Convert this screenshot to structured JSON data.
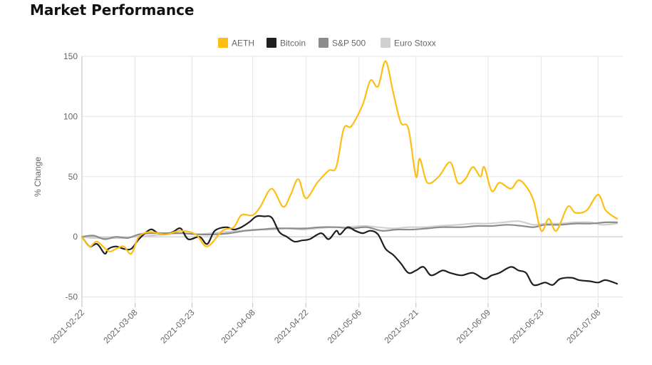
{
  "title": "Market Performance",
  "chart_data": {
    "type": "line",
    "title": "Market Performance",
    "xlabel": "",
    "ylabel": "% Change",
    "ylim": [
      -55,
      150
    ],
    "yticks": [
      -50,
      0,
      50,
      100,
      150
    ],
    "x_ticks": [
      "2021-02-22",
      "2021-03-08",
      "2021-03-23",
      "2021-04-08",
      "2021-04-22",
      "2021-05-06",
      "2021-05-21",
      "2021-06-09",
      "2021-06-23",
      "2021-07-08"
    ],
    "grid": true,
    "legend_position": "top",
    "series": [
      {
        "name": "AETH",
        "color": "#FDBF13",
        "points": [
          [
            "2021-02-22",
            0
          ],
          [
            "2021-02-24",
            -8
          ],
          [
            "2021-02-26",
            -4
          ],
          [
            "2021-03-01",
            -12
          ],
          [
            "2021-03-03",
            -10
          ],
          [
            "2021-03-05",
            -8
          ],
          [
            "2021-03-07",
            -14
          ],
          [
            "2021-03-09",
            0
          ],
          [
            "2021-03-12",
            4
          ],
          [
            "2021-03-16",
            2
          ],
          [
            "2021-03-20",
            5
          ],
          [
            "2021-03-24",
            2
          ],
          [
            "2021-03-27",
            -8
          ],
          [
            "2021-03-31",
            5
          ],
          [
            "2021-04-03",
            8
          ],
          [
            "2021-04-05",
            18
          ],
          [
            "2021-04-08",
            18
          ],
          [
            "2021-04-10",
            25
          ],
          [
            "2021-04-13",
            40
          ],
          [
            "2021-04-16",
            25
          ],
          [
            "2021-04-18",
            35
          ],
          [
            "2021-04-20",
            48
          ],
          [
            "2021-04-22",
            32
          ],
          [
            "2021-04-25",
            45
          ],
          [
            "2021-04-28",
            55
          ],
          [
            "2021-04-30",
            58
          ],
          [
            "2021-05-02",
            90
          ],
          [
            "2021-05-04",
            92
          ],
          [
            "2021-05-07",
            110
          ],
          [
            "2021-05-09",
            130
          ],
          [
            "2021-05-11",
            125
          ],
          [
            "2021-05-13",
            146
          ],
          [
            "2021-05-15",
            120
          ],
          [
            "2021-05-17",
            95
          ],
          [
            "2021-05-19",
            90
          ],
          [
            "2021-05-21",
            50
          ],
          [
            "2021-05-22",
            65
          ],
          [
            "2021-05-24",
            45
          ],
          [
            "2021-05-27",
            50
          ],
          [
            "2021-05-30",
            62
          ],
          [
            "2021-06-01",
            45
          ],
          [
            "2021-06-03",
            48
          ],
          [
            "2021-06-05",
            58
          ],
          [
            "2021-06-07",
            50
          ],
          [
            "2021-06-08",
            58
          ],
          [
            "2021-06-10",
            38
          ],
          [
            "2021-06-12",
            45
          ],
          [
            "2021-06-15",
            40
          ],
          [
            "2021-06-17",
            47
          ],
          [
            "2021-06-19",
            42
          ],
          [
            "2021-06-21",
            30
          ],
          [
            "2021-06-23",
            5
          ],
          [
            "2021-06-25",
            15
          ],
          [
            "2021-06-27",
            5
          ],
          [
            "2021-06-30",
            25
          ],
          [
            "2021-07-02",
            20
          ],
          [
            "2021-07-05",
            22
          ],
          [
            "2021-07-08",
            35
          ],
          [
            "2021-07-10",
            22
          ],
          [
            "2021-07-13",
            15
          ]
        ]
      },
      {
        "name": "Bitcoin",
        "color": "#1F1F1F",
        "points": [
          [
            "2021-02-22",
            0
          ],
          [
            "2021-02-24",
            -8
          ],
          [
            "2021-02-26",
            -6
          ],
          [
            "2021-02-28",
            -14
          ],
          [
            "2021-03-01",
            -10
          ],
          [
            "2021-03-03",
            -8
          ],
          [
            "2021-03-05",
            -10
          ],
          [
            "2021-03-07",
            -10
          ],
          [
            "2021-03-09",
            -2
          ],
          [
            "2021-03-12",
            6
          ],
          [
            "2021-03-14",
            3
          ],
          [
            "2021-03-16",
            2
          ],
          [
            "2021-03-18",
            4
          ],
          [
            "2021-03-20",
            7
          ],
          [
            "2021-03-22",
            -2
          ],
          [
            "2021-03-25",
            0
          ],
          [
            "2021-03-27",
            -6
          ],
          [
            "2021-03-29",
            5
          ],
          [
            "2021-04-01",
            8
          ],
          [
            "2021-04-03",
            6
          ],
          [
            "2021-04-05",
            8
          ],
          [
            "2021-04-07",
            12
          ],
          [
            "2021-04-09",
            17
          ],
          [
            "2021-04-11",
            17
          ],
          [
            "2021-04-13",
            16
          ],
          [
            "2021-04-15",
            4
          ],
          [
            "2021-04-17",
            0
          ],
          [
            "2021-04-19",
            -4
          ],
          [
            "2021-04-21",
            -3
          ],
          [
            "2021-04-23",
            -2
          ],
          [
            "2021-04-26",
            3
          ],
          [
            "2021-04-28",
            -2
          ],
          [
            "2021-04-30",
            5
          ],
          [
            "2021-05-01",
            2
          ],
          [
            "2021-05-03",
            8
          ],
          [
            "2021-05-05",
            5
          ],
          [
            "2021-05-07",
            3
          ],
          [
            "2021-05-09",
            5
          ],
          [
            "2021-05-11",
            2
          ],
          [
            "2021-05-13",
            -10
          ],
          [
            "2021-05-15",
            -15
          ],
          [
            "2021-05-17",
            -22
          ],
          [
            "2021-05-19",
            -30
          ],
          [
            "2021-05-21",
            -28
          ],
          [
            "2021-05-23",
            -25
          ],
          [
            "2021-05-25",
            -32
          ],
          [
            "2021-05-28",
            -28
          ],
          [
            "2021-05-30",
            -30
          ],
          [
            "2021-06-02",
            -32
          ],
          [
            "2021-06-05",
            -30
          ],
          [
            "2021-06-08",
            -35
          ],
          [
            "2021-06-10",
            -32
          ],
          [
            "2021-06-12",
            -30
          ],
          [
            "2021-06-15",
            -25
          ],
          [
            "2021-06-17",
            -28
          ],
          [
            "2021-06-19",
            -30
          ],
          [
            "2021-06-21",
            -40
          ],
          [
            "2021-06-24",
            -38
          ],
          [
            "2021-06-26",
            -40
          ],
          [
            "2021-06-28",
            -35
          ],
          [
            "2021-07-01",
            -34
          ],
          [
            "2021-07-03",
            -36
          ],
          [
            "2021-07-06",
            -37
          ],
          [
            "2021-07-08",
            -38
          ],
          [
            "2021-07-10",
            -36
          ],
          [
            "2021-07-13",
            -39
          ]
        ]
      },
      {
        "name": "S&P 500",
        "color": "#8C8C8C",
        "points": [
          [
            "2021-02-22",
            0
          ],
          [
            "2021-02-25",
            1
          ],
          [
            "2021-02-28",
            -2
          ],
          [
            "2021-03-03",
            0
          ],
          [
            "2021-03-06",
            -1
          ],
          [
            "2021-03-09",
            2
          ],
          [
            "2021-03-12",
            3
          ],
          [
            "2021-03-16",
            3
          ],
          [
            "2021-03-20",
            3
          ],
          [
            "2021-03-25",
            2
          ],
          [
            "2021-03-29",
            2
          ],
          [
            "2021-04-02",
            3
          ],
          [
            "2021-04-06",
            5
          ],
          [
            "2021-04-10",
            6
          ],
          [
            "2021-04-14",
            7
          ],
          [
            "2021-04-18",
            7
          ],
          [
            "2021-04-22",
            7
          ],
          [
            "2021-04-26",
            8
          ],
          [
            "2021-04-30",
            8
          ],
          [
            "2021-05-04",
            7
          ],
          [
            "2021-05-08",
            8
          ],
          [
            "2021-05-12",
            5
          ],
          [
            "2021-05-16",
            6
          ],
          [
            "2021-05-20",
            6
          ],
          [
            "2021-05-24",
            7
          ],
          [
            "2021-05-28",
            8
          ],
          [
            "2021-06-02",
            8
          ],
          [
            "2021-06-06",
            9
          ],
          [
            "2021-06-10",
            9
          ],
          [
            "2021-06-14",
            10
          ],
          [
            "2021-06-18",
            9
          ],
          [
            "2021-06-21",
            8
          ],
          [
            "2021-06-24",
            10
          ],
          [
            "2021-06-28",
            10
          ],
          [
            "2021-07-02",
            11
          ],
          [
            "2021-07-06",
            11
          ],
          [
            "2021-07-10",
            12
          ],
          [
            "2021-07-13",
            12
          ]
        ]
      },
      {
        "name": "Euro Stoxx",
        "color": "#D0D0D0",
        "points": [
          [
            "2021-02-22",
            0
          ],
          [
            "2021-02-25",
            -1
          ],
          [
            "2021-02-28",
            -1
          ],
          [
            "2021-03-04",
            -1
          ],
          [
            "2021-03-08",
            0
          ],
          [
            "2021-03-12",
            1
          ],
          [
            "2021-03-16",
            2
          ],
          [
            "2021-03-20",
            3
          ],
          [
            "2021-03-24",
            2
          ],
          [
            "2021-03-28",
            3
          ],
          [
            "2021-04-01",
            4
          ],
          [
            "2021-04-05",
            5
          ],
          [
            "2021-04-09",
            6
          ],
          [
            "2021-04-13",
            6
          ],
          [
            "2021-04-17",
            7
          ],
          [
            "2021-04-21",
            6
          ],
          [
            "2021-04-25",
            7
          ],
          [
            "2021-04-29",
            8
          ],
          [
            "2021-05-03",
            8
          ],
          [
            "2021-05-07",
            9
          ],
          [
            "2021-05-11",
            8
          ],
          [
            "2021-05-15",
            7
          ],
          [
            "2021-05-19",
            8
          ],
          [
            "2021-05-23",
            8
          ],
          [
            "2021-05-27",
            9
          ],
          [
            "2021-06-01",
            10
          ],
          [
            "2021-06-05",
            11
          ],
          [
            "2021-06-09",
            11
          ],
          [
            "2021-06-13",
            12
          ],
          [
            "2021-06-17",
            13
          ],
          [
            "2021-06-21",
            10
          ],
          [
            "2021-06-24",
            11
          ],
          [
            "2021-06-28",
            11
          ],
          [
            "2021-07-02",
            12
          ],
          [
            "2021-07-06",
            12
          ],
          [
            "2021-07-09",
            10
          ],
          [
            "2021-07-13",
            11
          ]
        ]
      }
    ]
  }
}
